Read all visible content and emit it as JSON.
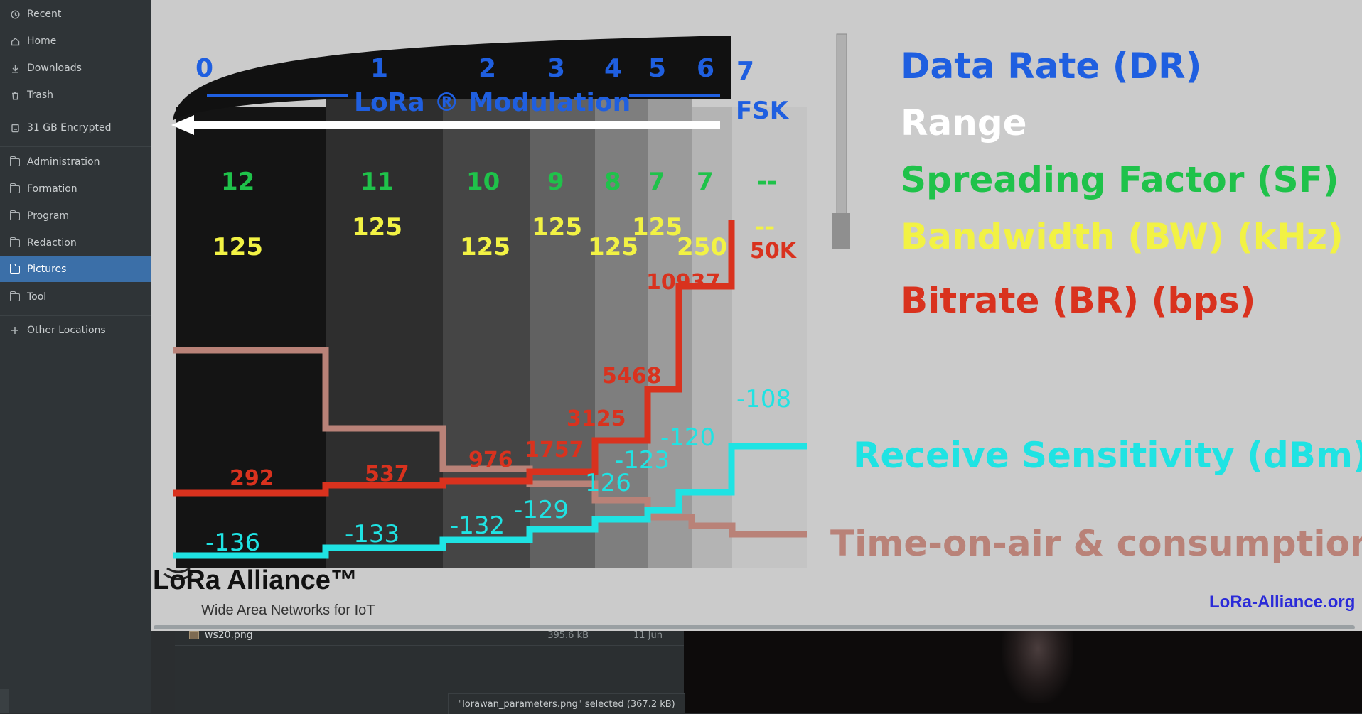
{
  "sidebar": {
    "items": [
      {
        "label": "Recent",
        "icon": "clock-icon"
      },
      {
        "label": "Home",
        "icon": "home-icon"
      },
      {
        "label": "Downloads",
        "icon": "download-icon"
      },
      {
        "label": "Trash",
        "icon": "trash-icon"
      },
      {
        "label": "31 GB Encrypted",
        "icon": "drive-icon"
      },
      {
        "label": "Administration",
        "icon": "folder-icon"
      },
      {
        "label": "Formation",
        "icon": "folder-icon"
      },
      {
        "label": "Program",
        "icon": "folder-icon"
      },
      {
        "label": "Redaction",
        "icon": "folder-icon"
      },
      {
        "label": "Pictures",
        "icon": "folder-icon",
        "active": true
      },
      {
        "label": "Tool",
        "icon": "folder-icon"
      },
      {
        "label": "Other Locations",
        "icon": "plus-icon"
      }
    ],
    "active_color": "#3b6fa8"
  },
  "file_list": {
    "row": {
      "name": "ws20.png",
      "size": "395.6 kB",
      "date": "11 Jun"
    },
    "status": "\"lorawan_parameters.png\" selected  (367.2 kB)"
  },
  "image": {
    "data_rates": [
      "0",
      "1",
      "2",
      "3",
      "4",
      "5",
      "6",
      "7"
    ],
    "modulation": "LoRa ® Modulation",
    "fsk": "FSK",
    "spreading_factors": [
      "12",
      "11",
      "10",
      "9",
      "8",
      "7",
      "7",
      "--"
    ],
    "bandwidths": [
      "125",
      "125",
      "125",
      "125",
      "125",
      "125",
      "250",
      "--"
    ],
    "bitrates": [
      "292",
      "537",
      "976",
      "1757",
      "3125",
      "5468",
      "10937",
      "50K"
    ],
    "sensitivities": [
      "-136",
      "-133",
      "-132",
      "-129",
      "126",
      "-123",
      "-120",
      "-108"
    ],
    "legend": {
      "dr": "Data Rate (DR)",
      "range": "Range",
      "sf": "Spreading Factor (SF)",
      "bw": "Bandwidth (BW) (kHz)",
      "br": "Bitrate (BR) (bps)",
      "rs": "Receive Sensitivity (dBm)",
      "toa": "Time-on-air & consumption"
    },
    "logo_text": "LoRa Alliance™",
    "logo_tagline": "Wide Area Networks for IoT",
    "site": "LoRa-Alliance.org",
    "colors": {
      "dr": "#1f5fe0",
      "sf": "#1fc24a",
      "bw": "#f2f244",
      "br": "#d9321e",
      "rs": "#1fe3e3",
      "toa": "#b98278"
    }
  }
}
